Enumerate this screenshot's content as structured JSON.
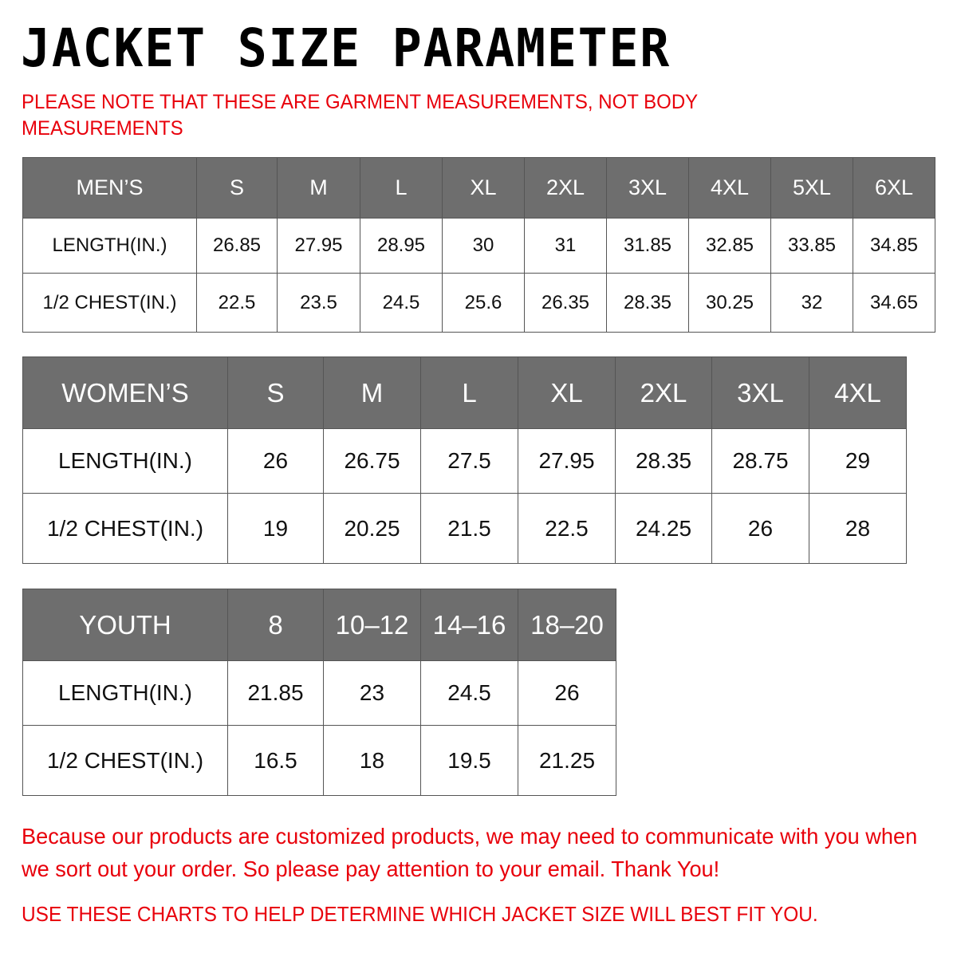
{
  "title": "JACKET  SIZE PARAMETER",
  "note": "PLEASE NOTE THAT THESE ARE GARMENT MEASUREMENTS, NOT BODY MEASUREMENTS",
  "colors": {
    "header_bg": "#6e6e6e",
    "accent_red": "#e8000b"
  },
  "tables": [
    {
      "id": "men",
      "header": [
        "MEN’S",
        "S",
        "M",
        "L",
        "XL",
        "2XL",
        "3XL",
        "4XL",
        "5XL",
        "6XL"
      ],
      "rows": [
        [
          "LENGTH(IN.)",
          "26.85",
          "27.95",
          "28.95",
          "30",
          "31",
          "31.85",
          "32.85",
          "33.85",
          "34.85"
        ],
        [
          "1/2 CHEST(IN.)",
          "22.5",
          "23.5",
          "24.5",
          "25.6",
          "26.35",
          "28.35",
          "30.25",
          "32",
          "34.65"
        ]
      ]
    },
    {
      "id": "women",
      "header": [
        "WOMEN’S",
        "S",
        "M",
        "L",
        "XL",
        "2XL",
        "3XL",
        "4XL"
      ],
      "rows": [
        [
          "LENGTH(IN.)",
          "26",
          "26.75",
          "27.5",
          "27.95",
          "28.35",
          "28.75",
          "29"
        ],
        [
          "1/2 CHEST(IN.)",
          "19",
          "20.25",
          "21.5",
          "22.5",
          "24.25",
          "26",
          "28"
        ]
      ]
    },
    {
      "id": "youth",
      "header": [
        "YOUTH",
        "8",
        "10–12",
        "14–16",
        "18–20"
      ],
      "rows": [
        [
          "LENGTH(IN.)",
          "21.85",
          "23",
          "24.5",
          "26"
        ],
        [
          "1/2 CHEST(IN.)",
          "16.5",
          "18",
          "19.5",
          "21.25"
        ]
      ]
    }
  ],
  "footer": {
    "message": "Because our products are customized products, we may need to communicate with you when we sort out your order. So please pay attention to your email. Thank You!",
    "instruction": "USE THESE CHARTS TO HELP DETERMINE WHICH JACKET SIZE WILL BEST FIT YOU."
  }
}
